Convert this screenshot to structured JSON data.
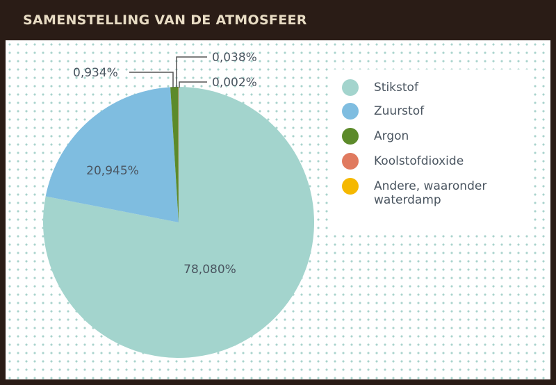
{
  "chart_data": {
    "type": "pie",
    "title": "SAMENSTELLING VAN DE ATMOSFEER",
    "slices": [
      {
        "name": "Stikstof",
        "value": 78.08,
        "label": "78,080%",
        "color": "#a3d4cd"
      },
      {
        "name": "Zuurstof",
        "value": 20.945,
        "label": "20,945%",
        "color": "#7fbde0"
      },
      {
        "name": "Argon",
        "value": 0.934,
        "label": "0,934%",
        "color": "#5c8a2a"
      },
      {
        "name": "Koolstofdioxide",
        "value": 0.038,
        "label": "0,038%",
        "color": "#e07a5f"
      },
      {
        "name": "Andere, waaronder waterdamp",
        "value": 0.002,
        "label": "0,002%",
        "color": "#f5b800"
      }
    ],
    "legend": "right"
  }
}
